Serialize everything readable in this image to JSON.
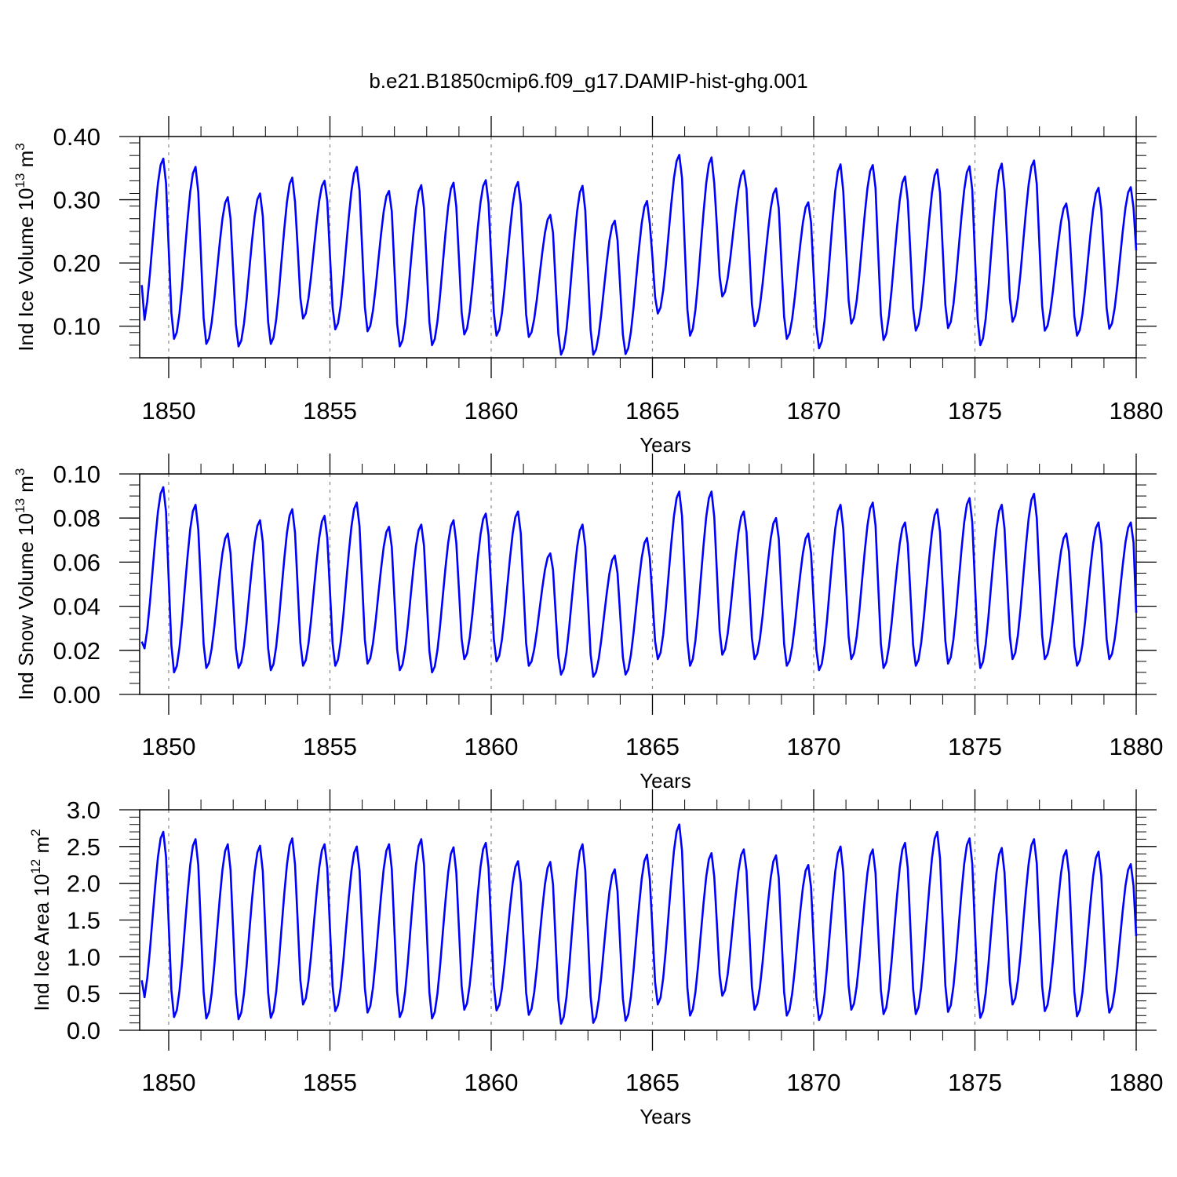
{
  "title": "b.e21.B1850cmip6.f09_g17.DAMIP-hist-ghg.001",
  "colors": {
    "series": "#0000ff",
    "axis": "#000000",
    "gridline": "#888888",
    "background": "#ffffff"
  },
  "chart_data": [
    {
      "type": "line",
      "name": "ice-volume",
      "ylabel_parts": [
        "Ind Ice Volume 10",
        "13",
        " m",
        "3"
      ],
      "xlabel": "Years",
      "xlim": [
        1849.1,
        1880.0
      ],
      "ylim": [
        0.05,
        0.4
      ],
      "yticks": [
        0.1,
        0.2,
        0.3,
        0.4
      ],
      "ytick_labels": [
        "0.10",
        "0.20",
        "0.30",
        "0.40"
      ],
      "yminor_step": 0.02,
      "xticks": [
        1850,
        1855,
        1860,
        1865,
        1870,
        1875,
        1880
      ],
      "xtick_labels": [
        "1850",
        "1855",
        "1860",
        "1865",
        "1870",
        "1875",
        "1880"
      ],
      "xgrid": [
        1850,
        1855,
        1860,
        1865,
        1870,
        1875
      ],
      "min_month": 2,
      "max_month": 10,
      "annual": [
        [
          0.1,
          0.365
        ],
        [
          0.08,
          0.352
        ],
        [
          0.072,
          0.304
        ],
        [
          0.068,
          0.31
        ],
        [
          0.072,
          0.335
        ],
        [
          0.112,
          0.33
        ],
        [
          0.095,
          0.352
        ],
        [
          0.092,
          0.314
        ],
        [
          0.068,
          0.323
        ],
        [
          0.07,
          0.327
        ],
        [
          0.087,
          0.331
        ],
        [
          0.085,
          0.328
        ],
        [
          0.083,
          0.276
        ],
        [
          0.055,
          0.322
        ],
        [
          0.055,
          0.267
        ],
        [
          0.056,
          0.298
        ],
        [
          0.12,
          0.371
        ],
        [
          0.085,
          0.367
        ],
        [
          0.147,
          0.346
        ],
        [
          0.1,
          0.318
        ],
        [
          0.08,
          0.296
        ],
        [
          0.065,
          0.356
        ],
        [
          0.104,
          0.355
        ],
        [
          0.078,
          0.337
        ],
        [
          0.093,
          0.348
        ],
        [
          0.097,
          0.353
        ],
        [
          0.07,
          0.357
        ],
        [
          0.107,
          0.362
        ],
        [
          0.093,
          0.294
        ],
        [
          0.085,
          0.319
        ],
        [
          0.096,
          0.32
        ]
      ],
      "last_value": 0.22,
      "first_value": 0.165
    },
    {
      "type": "line",
      "name": "snow-volume",
      "ylabel_parts": [
        "Ind Snow Volume 10",
        "13",
        " m",
        "3"
      ],
      "xlabel": "Years",
      "xlim": [
        1849.1,
        1880.0
      ],
      "ylim": [
        0.0,
        0.1
      ],
      "yticks": [
        0.0,
        0.02,
        0.04,
        0.06,
        0.08,
        0.1
      ],
      "ytick_labels": [
        "0.00",
        "0.02",
        "0.04",
        "0.06",
        "0.08",
        "0.10"
      ],
      "yminor_step": 0.005,
      "xticks": [
        1850,
        1855,
        1860,
        1865,
        1870,
        1875,
        1880
      ],
      "xtick_labels": [
        "1850",
        "1855",
        "1860",
        "1865",
        "1870",
        "1875",
        "1880"
      ],
      "xgrid": [
        1850,
        1855,
        1860,
        1865,
        1870,
        1875
      ],
      "min_month": 2,
      "max_month": 10,
      "annual": [
        [
          0.018,
          0.094
        ],
        [
          0.01,
          0.086
        ],
        [
          0.012,
          0.073
        ],
        [
          0.012,
          0.079
        ],
        [
          0.011,
          0.084
        ],
        [
          0.013,
          0.081
        ],
        [
          0.013,
          0.087
        ],
        [
          0.014,
          0.076
        ],
        [
          0.011,
          0.077
        ],
        [
          0.01,
          0.079
        ],
        [
          0.016,
          0.082
        ],
        [
          0.015,
          0.083
        ],
        [
          0.013,
          0.064
        ],
        [
          0.009,
          0.077
        ],
        [
          0.008,
          0.063
        ],
        [
          0.009,
          0.071
        ],
        [
          0.016,
          0.092
        ],
        [
          0.013,
          0.092
        ],
        [
          0.018,
          0.083
        ],
        [
          0.016,
          0.08
        ],
        [
          0.013,
          0.073
        ],
        [
          0.011,
          0.086
        ],
        [
          0.016,
          0.087
        ],
        [
          0.012,
          0.078
        ],
        [
          0.013,
          0.084
        ],
        [
          0.014,
          0.089
        ],
        [
          0.012,
          0.086
        ],
        [
          0.016,
          0.091
        ],
        [
          0.016,
          0.073
        ],
        [
          0.013,
          0.078
        ],
        [
          0.016,
          0.078
        ]
      ],
      "last_value": 0.037,
      "first_value": 0.024
    },
    {
      "type": "line",
      "name": "ice-area",
      "ylabel_parts": [
        "Ind Ice Area 10",
        "12",
        " m",
        "2"
      ],
      "xlabel": "Years",
      "xlim": [
        1849.1,
        1880.0
      ],
      "ylim": [
        0.0,
        3.0
      ],
      "yticks": [
        0.0,
        0.5,
        1.0,
        1.5,
        2.0,
        2.5,
        3.0
      ],
      "ytick_labels": [
        "0.0",
        "0.5",
        "1.0",
        "1.5",
        "2.0",
        "2.5",
        "3.0"
      ],
      "yminor_step": 0.1,
      "xticks": [
        1850,
        1855,
        1860,
        1865,
        1870,
        1875,
        1880
      ],
      "xtick_labels": [
        "1850",
        "1855",
        "1860",
        "1865",
        "1870",
        "1875",
        "1880"
      ],
      "xgrid": [
        1850,
        1855,
        1860,
        1865,
        1870,
        1875
      ],
      "min_month": 2,
      "max_month": 10,
      "annual": [
        [
          0.36,
          2.7
        ],
        [
          0.18,
          2.6
        ],
        [
          0.16,
          2.53
        ],
        [
          0.15,
          2.51
        ],
        [
          0.17,
          2.61
        ],
        [
          0.35,
          2.53
        ],
        [
          0.26,
          2.5
        ],
        [
          0.24,
          2.53
        ],
        [
          0.18,
          2.6
        ],
        [
          0.16,
          2.49
        ],
        [
          0.28,
          2.55
        ],
        [
          0.27,
          2.3
        ],
        [
          0.21,
          2.29
        ],
        [
          0.09,
          2.53
        ],
        [
          0.1,
          2.19
        ],
        [
          0.13,
          2.39
        ],
        [
          0.35,
          2.8
        ],
        [
          0.2,
          2.41
        ],
        [
          0.47,
          2.46
        ],
        [
          0.28,
          2.38
        ],
        [
          0.2,
          2.25
        ],
        [
          0.14,
          2.5
        ],
        [
          0.28,
          2.46
        ],
        [
          0.22,
          2.55
        ],
        [
          0.22,
          2.7
        ],
        [
          0.25,
          2.61
        ],
        [
          0.17,
          2.48
        ],
        [
          0.35,
          2.6
        ],
        [
          0.26,
          2.45
        ],
        [
          0.19,
          2.43
        ],
        [
          0.24,
          2.26
        ]
      ],
      "last_value": 1.28,
      "first_value": 0.68
    }
  ]
}
